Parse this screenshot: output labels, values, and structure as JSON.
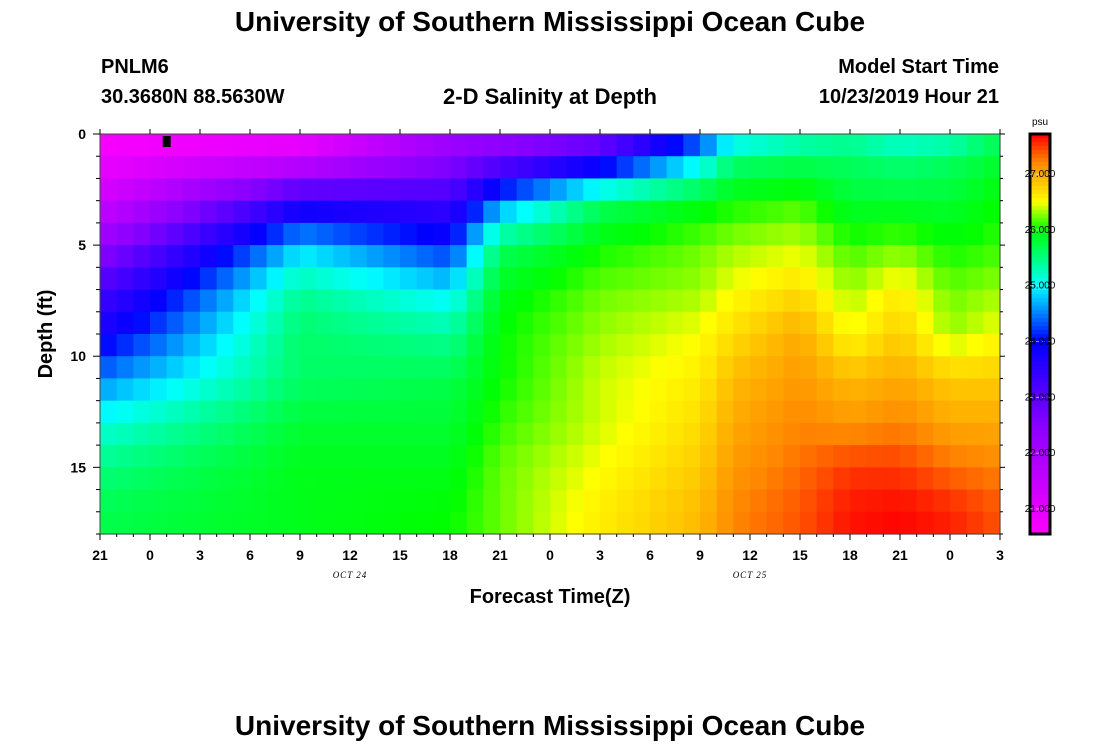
{
  "titles": {
    "top": "University of Southern Mississippi Ocean Cube",
    "bottom": "University of Southern Mississippi Ocean Cube"
  },
  "station": {
    "id": "PNLM6",
    "coords": "30.3680N 88.5630W"
  },
  "model": {
    "start_label": "Model Start Time",
    "start_value": "10/23/2019 Hour 21"
  },
  "chart_data": {
    "type": "heatmap",
    "title": "2-D Salinity at Depth",
    "xlabel": "Forecast Time(Z)",
    "ylabel": "Depth (ft)",
    "x_hours_range": [
      0,
      54
    ],
    "x_tick_labels": [
      "21",
      "0",
      "3",
      "6",
      "9",
      "12",
      "15",
      "18",
      "21",
      "0",
      "3",
      "6",
      "9",
      "12",
      "15",
      "18",
      "21",
      "0",
      "3"
    ],
    "date_labels": [
      {
        "text": "OCT 24",
        "hour": 15
      },
      {
        "text": "OCT 25",
        "hour": 39
      }
    ],
    "ylim": [
      0,
      18
    ],
    "y_tick_labels": [
      0,
      5,
      10,
      15
    ],
    "y_minor_step": 1,
    "colorbar": {
      "units": "psu",
      "range": [
        20.55,
        27.72
      ],
      "tick_labels": [
        "21.000",
        "22.000",
        "23.000",
        "24.000",
        "25.000",
        "26.000",
        "27.000"
      ],
      "tick_values": [
        21,
        22,
        23,
        24,
        25,
        26,
        27
      ],
      "stops": [
        {
          "v": 20.55,
          "color": "#ff00ff"
        },
        {
          "v": 22.5,
          "color": "#8800ff"
        },
        {
          "v": 24.0,
          "color": "#0000ff"
        },
        {
          "v": 25.0,
          "color": "#00ffff"
        },
        {
          "v": 26.0,
          "color": "#00ff00"
        },
        {
          "v": 26.5,
          "color": "#ffff00"
        },
        {
          "v": 27.2,
          "color": "#ff8800"
        },
        {
          "v": 27.72,
          "color": "#ff0000"
        }
      ]
    },
    "grid": {
      "times": [
        0,
        12,
        21,
        24,
        30,
        36,
        38,
        42,
        45,
        48,
        51,
        54
      ],
      "depths": [
        0,
        1,
        3,
        5,
        7,
        9,
        11,
        13,
        15,
        17,
        18
      ],
      "salinity": [
        [
          20.6,
          20.7,
          22.0,
          22.1,
          22.4,
          24.0,
          24.7,
          25.1,
          25.3,
          25.0,
          25.1,
          25.6
        ],
        [
          20.8,
          21.2,
          22.4,
          22.7,
          23.4,
          24.8,
          25.5,
          25.6,
          25.6,
          25.5,
          25.6,
          25.8
        ],
        [
          21.3,
          23.5,
          23.3,
          24.5,
          25.6,
          25.9,
          26.0,
          26.1,
          25.8,
          25.8,
          25.8,
          26.0
        ],
        [
          22.3,
          24.8,
          24.1,
          25.6,
          26.0,
          26.2,
          26.3,
          26.4,
          26.1,
          26.2,
          26.0,
          26.1
        ],
        [
          23.2,
          25.4,
          24.9,
          25.9,
          26.2,
          26.3,
          26.5,
          26.7,
          26.3,
          26.6,
          26.2,
          26.3
        ],
        [
          23.8,
          25.6,
          25.4,
          26.0,
          26.3,
          26.5,
          26.7,
          27.0,
          26.5,
          26.8,
          26.3,
          26.5
        ],
        [
          24.5,
          25.6,
          25.7,
          26.0,
          26.4,
          26.6,
          26.9,
          27.1,
          26.9,
          27.0,
          26.8,
          26.8
        ],
        [
          25.1,
          25.8,
          25.8,
          26.1,
          26.4,
          26.7,
          27.0,
          27.2,
          27.1,
          27.2,
          27.0,
          27.0
        ],
        [
          25.5,
          25.9,
          25.9,
          26.2,
          26.5,
          26.8,
          27.1,
          27.3,
          27.5,
          27.5,
          27.3,
          27.2
        ],
        [
          25.7,
          25.9,
          26.0,
          26.2,
          26.6,
          26.9,
          27.2,
          27.4,
          27.65,
          27.7,
          27.6,
          27.4
        ],
        [
          25.7,
          25.9,
          26.0,
          26.2,
          26.6,
          26.9,
          27.2,
          27.4,
          27.65,
          27.7,
          27.6,
          27.4
        ]
      ]
    },
    "marker": {
      "hour": 4,
      "depth": 0.2
    }
  }
}
